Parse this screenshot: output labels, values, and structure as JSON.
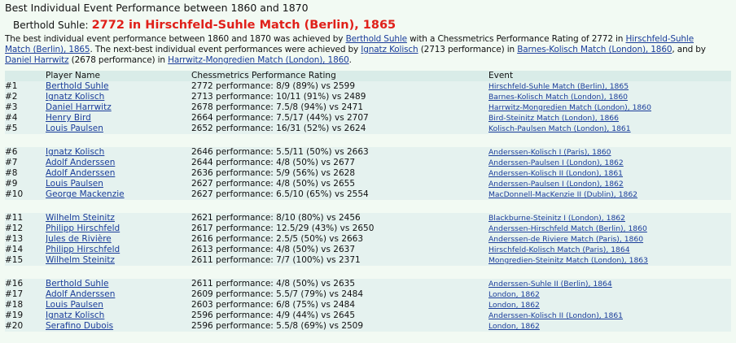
{
  "header": {
    "title": "Best Individual Event Performance between 1860 and 1870",
    "subject": "Berthold Suhle:",
    "highlight": "2772 in Hirschfeld-Suhle Match (Berlin), 1865"
  },
  "intro": [
    "The best individual event performance between 1860 and 1870 was achieved by ",
    {
      "link": "Berthold Suhle"
    },
    " with a Chessmetrics Performance Rating of 2772 in ",
    {
      "link": "Hirschfeld-Suhle Match (Berlin), 1865"
    },
    ". The next-best individual event performances were achieved by ",
    {
      "link": "Ignatz Kolisch"
    },
    " (2713 performance) in ",
    {
      "link": "Barnes-Kolisch Match (London), 1860"
    },
    ", and by ",
    {
      "link": "Daniel Harrwitz"
    },
    " (2678 performance) in ",
    {
      "link": "Harrwitz-Mongredien Match (London), 1860"
    },
    "."
  ],
  "table": {
    "headers": [
      "Player Name",
      "Chessmetrics Performance Rating",
      "Event"
    ],
    "groups": [
      [
        [
          "#1",
          "Berthold Suhle",
          "2772 performance: 8/9 (89%) vs 2599",
          "Hirschfeld-Suhle Match (Berlin), 1865"
        ],
        [
          "#2",
          "Ignatz Kolisch",
          "2713 performance: 10/11 (91%) vs 2489",
          "Barnes-Kolisch Match (London), 1860"
        ],
        [
          "#3",
          "Daniel Harrwitz",
          "2678 performance: 7.5/8 (94%) vs 2471",
          "Harrwitz-Mongredien Match (London), 1860"
        ],
        [
          "#4",
          "Henry Bird",
          "2664 performance: 7.5/17 (44%) vs 2707",
          "Bird-Steinitz Match (London), 1866"
        ],
        [
          "#5",
          "Louis Paulsen",
          "2652 performance: 16/31 (52%) vs 2624",
          "Kolisch-Paulsen Match (London), 1861"
        ]
      ],
      [
        [
          "#6",
          "Ignatz Kolisch",
          "2646 performance: 5.5/11 (50%) vs 2663",
          "Anderssen-Kolisch I (Paris), 1860"
        ],
        [
          "#7",
          "Adolf Anderssen",
          "2644 performance: 4/8 (50%) vs 2677",
          "Anderssen-Paulsen I (London), 1862"
        ],
        [
          "#8",
          "Adolf Anderssen",
          "2636 performance: 5/9 (56%) vs 2628",
          "Anderssen-Kolisch II (London), 1861"
        ],
        [
          "#9",
          "Louis Paulsen",
          "2627 performance: 4/8 (50%) vs 2655",
          "Anderssen-Paulsen I (London), 1862"
        ],
        [
          "#10",
          "George Mackenzie",
          "2627 performance: 6.5/10 (65%) vs 2554",
          "MacDonnell-MacKenzie II (Dublin), 1862"
        ]
      ],
      [
        [
          "#11",
          "Wilhelm Steinitz",
          "2621 performance: 8/10 (80%) vs 2456",
          "Blackburne-Steinitz I (London), 1862"
        ],
        [
          "#12",
          "Philipp Hirschfeld",
          "2617 performance: 12.5/29 (43%) vs 2650",
          "Anderssen-Hirschfeld Match (Berlin), 1860"
        ],
        [
          "#13",
          "Jules de Rivière",
          "2616 performance: 2.5/5 (50%) vs 2663",
          "Anderssen-de Riviere Match (Paris), 1860"
        ],
        [
          "#14",
          "Philipp Hirschfeld",
          "2613 performance: 4/8 (50%) vs 2637",
          "Hirschfeld-Kolisch Match (Paris), 1864"
        ],
        [
          "#15",
          "Wilhelm Steinitz",
          "2611 performance: 7/7 (100%) vs 2371",
          "Mongredien-Steinitz Match (London), 1863"
        ]
      ],
      [
        [
          "#16",
          "Berthold Suhle",
          "2611 performance: 4/8 (50%) vs 2635",
          "Anderssen-Suhle II (Berlin), 1864"
        ],
        [
          "#17",
          "Adolf Anderssen",
          "2609 performance: 5.5/7 (79%) vs 2484",
          "London, 1862"
        ],
        [
          "#18",
          "Louis Paulsen",
          "2603 performance: 6/8 (75%) vs 2484",
          "London, 1862"
        ],
        [
          "#19",
          "Ignatz Kolisch",
          "2596 performance: 4/9 (44%) vs 2645",
          "Anderssen-Kolisch II (London), 1861"
        ],
        [
          "#20",
          "Serafino Dubois",
          "2596 performance: 5.5/8 (69%) vs 2509",
          "London, 1862"
        ]
      ]
    ]
  }
}
